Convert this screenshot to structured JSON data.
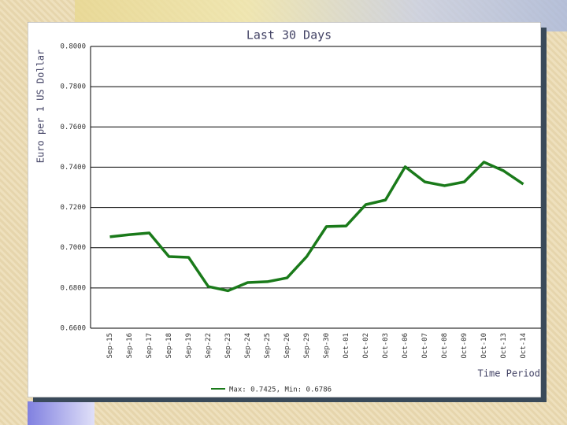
{
  "chart_data": {
    "type": "line",
    "title": "Last 30 Days",
    "y_label": "Euro per 1 US Dollar",
    "x_label": "Time Period",
    "categories": [
      "Sep-15",
      "Sep-16",
      "Sep-17",
      "Sep-18",
      "Sep-19",
      "Sep-22",
      "Sep-23",
      "Sep-24",
      "Sep-25",
      "Sep-26",
      "Sep-29",
      "Sep-30",
      "Oct-01",
      "Oct-02",
      "Oct-03",
      "Oct-06",
      "Oct-07",
      "Oct-08",
      "Oct-09",
      "Oct-10",
      "Oct-13",
      "Oct-14"
    ],
    "series": [
      {
        "name": "Max: 0.7425, Min: 0.6786",
        "color": "#1a7a1a",
        "values": [
          0.7054,
          0.7065,
          0.7073,
          0.6956,
          0.6952,
          0.6807,
          0.6786,
          0.6827,
          0.6831,
          0.685,
          0.6956,
          0.7105,
          0.7108,
          0.7214,
          0.7237,
          0.7402,
          0.7327,
          0.7308,
          0.7327,
          0.7425,
          0.7382,
          0.7316
        ]
      }
    ],
    "ylim": [
      0.66,
      0.8
    ],
    "yticks": [
      {
        "value": 0.66,
        "label": "0.6600"
      },
      {
        "value": 0.68,
        "label": "0.6800"
      },
      {
        "value": 0.7,
        "label": "0.7000"
      },
      {
        "value": 0.72,
        "label": "0.7200"
      },
      {
        "value": 0.74,
        "label": "0.7400"
      },
      {
        "value": 0.76,
        "label": "0.7600"
      },
      {
        "value": 0.78,
        "label": "0.7800"
      },
      {
        "value": 0.8,
        "label": "0.8000"
      }
    ],
    "grid": true
  }
}
